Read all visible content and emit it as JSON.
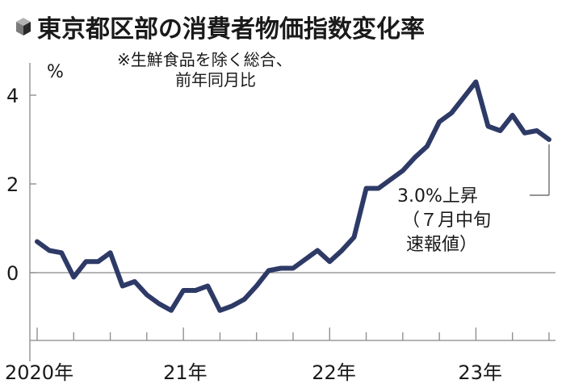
{
  "title": "東京都区部の消費者物価指数変化率",
  "title_icon": "cube-icon",
  "chart_data": {
    "type": "line",
    "title": "東京都区部の消費者物価指数変化率",
    "ylabel": "%",
    "note_lines": [
      "※生鮮食品を除く総合、",
      "前年同月比"
    ],
    "ylim": [
      -1.5,
      4.5
    ],
    "yticks": [
      0,
      2,
      4
    ],
    "x_labels": [
      "2020年",
      "21年",
      "22年",
      "23年"
    ],
    "x_label_months": [
      0,
      12,
      24,
      36
    ],
    "x_range_months": [
      -1.2,
      43
    ],
    "grid": false,
    "baseline": 0,
    "series": [
      {
        "color": "#2e3a66",
        "points": [
          [
            0,
            0.7
          ],
          [
            1,
            0.5
          ],
          [
            2,
            0.45
          ],
          [
            3,
            -0.1
          ],
          [
            4,
            0.25
          ],
          [
            5,
            0.25
          ],
          [
            6,
            0.45
          ],
          [
            7,
            -0.3
          ],
          [
            8,
            -0.2
          ],
          [
            9,
            -0.5
          ],
          [
            10,
            -0.7
          ],
          [
            11,
            -0.85
          ],
          [
            12,
            -0.4
          ],
          [
            13,
            -0.4
          ],
          [
            14,
            -0.3
          ],
          [
            15,
            -0.85
          ],
          [
            16,
            -0.75
          ],
          [
            17,
            -0.6
          ],
          [
            18,
            -0.3
          ],
          [
            19,
            0.05
          ],
          [
            20,
            0.1
          ],
          [
            21,
            0.1
          ],
          [
            22,
            0.3
          ],
          [
            23,
            0.5
          ],
          [
            24,
            0.25
          ],
          [
            25,
            0.5
          ],
          [
            26,
            0.8
          ],
          [
            27,
            1.9
          ],
          [
            28,
            1.9
          ],
          [
            29,
            2.1
          ],
          [
            30,
            2.3
          ],
          [
            31,
            2.6
          ],
          [
            32,
            2.85
          ],
          [
            33,
            3.4
          ],
          [
            34,
            3.6
          ],
          [
            35,
            3.95
          ],
          [
            36,
            4.3
          ],
          [
            37,
            3.3
          ],
          [
            38,
            3.2
          ],
          [
            39,
            3.55
          ],
          [
            40,
            3.15
          ],
          [
            41,
            3.2
          ],
          [
            42,
            3.0
          ]
        ]
      }
    ],
    "annotation": {
      "lines": [
        "3.0%上昇",
        "（７月中旬",
        "速報値）"
      ],
      "target_point": [
        42,
        3.0
      ]
    }
  }
}
